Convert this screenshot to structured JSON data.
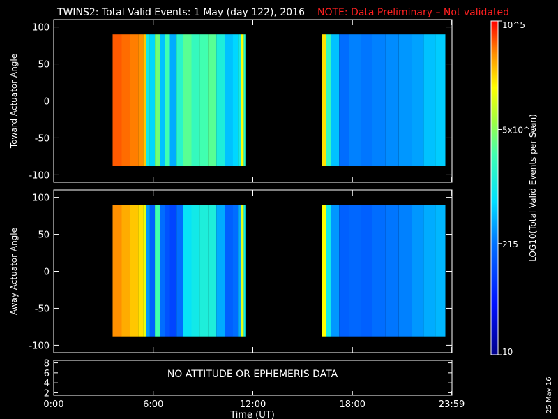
{
  "title": "TWINS2: Total Valid Events:  1 May (day 122), 2016",
  "note": "NOTE: Data Preliminary – Not validated",
  "date_stamp": "25 May 16",
  "no_data_message": "NO ATTITUDE OR EPHEMERIS DATA",
  "xaxis_label": "Time (UT)",
  "colorbar": {
    "label": "LOG10(Total Valid Events per Scan)",
    "ticks": [
      {
        "value": 100000,
        "label": "10^5"
      },
      {
        "value": 5000,
        "label": "5x10^3"
      },
      {
        "value": 215,
        "label": "215"
      },
      {
        "value": 10,
        "label": "10"
      }
    ],
    "range": [
      10,
      100000
    ],
    "scale": "log"
  },
  "chart_data": [
    {
      "type": "heatmap",
      "ylabel": "Toward Actuator Angle",
      "xlim": [
        0,
        24
      ],
      "ylim": [
        -110,
        110
      ],
      "xticks": [
        {
          "value": 0,
          "label": "0:00"
        },
        {
          "value": 6,
          "label": "6:00"
        },
        {
          "value": 12,
          "label": "12:00"
        },
        {
          "value": 18,
          "label": "18:00"
        },
        {
          "value": 23.983,
          "label": "23:59"
        }
      ],
      "yticks": [
        100,
        50,
        0,
        -50,
        -100
      ],
      "angle_range": [
        -88,
        90
      ],
      "segments": [
        {
          "t_start": 3.55,
          "t_end": 11.55,
          "columns": [
            {
              "t": 3.55,
              "log_value": 4.75
            },
            {
              "t": 4.1,
              "log_value": 4.7
            },
            {
              "t": 4.6,
              "log_value": 4.65
            },
            {
              "t": 5.1,
              "log_value": 4.6
            },
            {
              "t": 5.4,
              "log_value": 4.4
            },
            {
              "t": 5.55,
              "log_value": 3.0
            },
            {
              "t": 5.8,
              "log_value": 2.8
            },
            {
              "t": 6.1,
              "log_value": 3.6
            },
            {
              "t": 6.4,
              "log_value": 2.7
            },
            {
              "t": 6.7,
              "log_value": 3.4
            },
            {
              "t": 7.0,
              "log_value": 2.6
            },
            {
              "t": 7.4,
              "log_value": 3.2
            },
            {
              "t": 7.8,
              "log_value": 3.5
            },
            {
              "t": 8.3,
              "log_value": 3.3
            },
            {
              "t": 8.8,
              "log_value": 3.4
            },
            {
              "t": 9.3,
              "log_value": 3.5
            },
            {
              "t": 9.8,
              "log_value": 3.1
            },
            {
              "t": 10.3,
              "log_value": 2.7
            },
            {
              "t": 10.8,
              "log_value": 2.8
            },
            {
              "t": 11.1,
              "log_value": 3.0
            },
            {
              "t": 11.3,
              "log_value": 4.2
            },
            {
              "t": 11.45,
              "log_value": 3.2
            }
          ]
        },
        {
          "t_start": 16.15,
          "t_end": 23.6,
          "columns": [
            {
              "t": 16.15,
              "log_value": 4.3
            },
            {
              "t": 16.4,
              "log_value": 3.3
            },
            {
              "t": 16.7,
              "log_value": 2.7
            },
            {
              "t": 17.2,
              "log_value": 2.3
            },
            {
              "t": 17.8,
              "log_value": 2.4
            },
            {
              "t": 18.5,
              "log_value": 2.35
            },
            {
              "t": 19.2,
              "log_value": 2.4
            },
            {
              "t": 20.0,
              "log_value": 2.45
            },
            {
              "t": 20.8,
              "log_value": 2.5
            },
            {
              "t": 21.6,
              "log_value": 2.55
            },
            {
              "t": 22.3,
              "log_value": 2.7
            },
            {
              "t": 23.0,
              "log_value": 2.75
            }
          ]
        }
      ]
    },
    {
      "type": "heatmap",
      "ylabel": "Away Actuator Angle",
      "xlim": [
        0,
        24
      ],
      "ylim": [
        -110,
        110
      ],
      "xticks": [
        {
          "value": 0,
          "label": "0:00"
        },
        {
          "value": 6,
          "label": "6:00"
        },
        {
          "value": 12,
          "label": "12:00"
        },
        {
          "value": 18,
          "label": "18:00"
        },
        {
          "value": 23.983,
          "label": "23:59"
        }
      ],
      "yticks": [
        100,
        50,
        0,
        -50,
        -100
      ],
      "angle_range": [
        -88,
        90
      ],
      "segments": [
        {
          "t_start": 3.55,
          "t_end": 11.55,
          "columns": [
            {
              "t": 3.55,
              "log_value": 4.6
            },
            {
              "t": 4.1,
              "log_value": 4.5
            },
            {
              "t": 4.6,
              "log_value": 4.4
            },
            {
              "t": 5.1,
              "log_value": 4.3
            },
            {
              "t": 5.4,
              "log_value": 4.1
            },
            {
              "t": 5.55,
              "log_value": 2.5
            },
            {
              "t": 5.8,
              "log_value": 2.2
            },
            {
              "t": 6.1,
              "log_value": 3.4
            },
            {
              "t": 6.4,
              "log_value": 2.3
            },
            {
              "t": 6.7,
              "log_value": 2.1
            },
            {
              "t": 7.0,
              "log_value": 2.0
            },
            {
              "t": 7.4,
              "log_value": 2.3
            },
            {
              "t": 7.8,
              "log_value": 2.9
            },
            {
              "t": 8.3,
              "log_value": 3.0
            },
            {
              "t": 8.8,
              "log_value": 3.1
            },
            {
              "t": 9.3,
              "log_value": 3.1
            },
            {
              "t": 9.8,
              "log_value": 2.6
            },
            {
              "t": 10.3,
              "log_value": 2.2
            },
            {
              "t": 10.8,
              "log_value": 2.3
            },
            {
              "t": 11.1,
              "log_value": 2.6
            },
            {
              "t": 11.3,
              "log_value": 4.1
            },
            {
              "t": 11.45,
              "log_value": 3.0
            }
          ]
        },
        {
          "t_start": 16.15,
          "t_end": 23.6,
          "columns": [
            {
              "t": 16.15,
              "log_value": 4.2
            },
            {
              "t": 16.4,
              "log_value": 3.0
            },
            {
              "t": 16.7,
              "log_value": 2.5
            },
            {
              "t": 17.2,
              "log_value": 2.2
            },
            {
              "t": 17.8,
              "log_value": 2.25
            },
            {
              "t": 18.5,
              "log_value": 2.2
            },
            {
              "t": 19.2,
              "log_value": 2.3
            },
            {
              "t": 20.0,
              "log_value": 2.35
            },
            {
              "t": 20.8,
              "log_value": 2.4
            },
            {
              "t": 21.6,
              "log_value": 2.5
            },
            {
              "t": 22.3,
              "log_value": 2.6
            },
            {
              "t": 23.0,
              "log_value": 2.65
            }
          ]
        }
      ]
    },
    {
      "type": "table",
      "ylim": [
        1.5,
        8.5
      ],
      "yticks": [
        8,
        6,
        4,
        2
      ],
      "xlim": [
        0,
        24
      ]
    }
  ]
}
